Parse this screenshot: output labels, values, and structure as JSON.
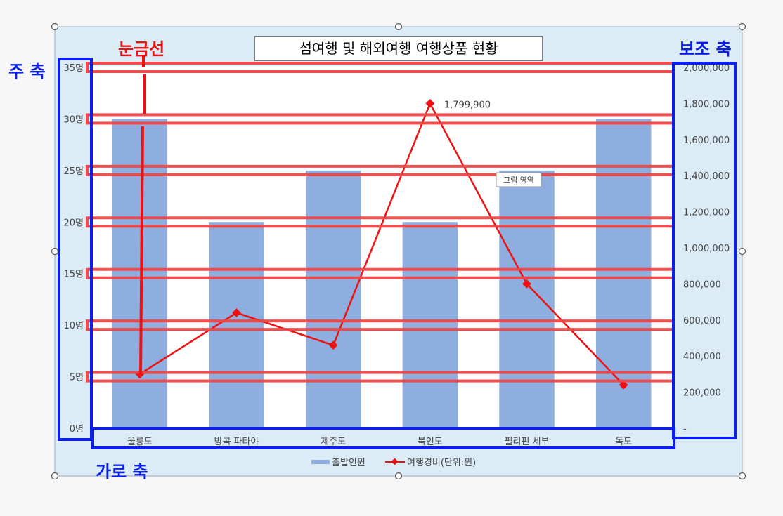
{
  "chart_data": {
    "type": "bar",
    "title": "섬여행 및 해외여행 여행상품 현황",
    "categories": [
      "울릉도",
      "방콕 파타야",
      "제주도",
      "북인도",
      "필리핀 세부",
      "독도"
    ],
    "series": [
      {
        "name": "출발인원",
        "type": "bar",
        "axis": "primary",
        "color": "#8eaedf",
        "values": [
          30,
          20,
          25,
          20,
          25,
          30
        ]
      },
      {
        "name": "여행경비(단위:원)",
        "type": "line",
        "axis": "secondary",
        "color": "#ee1111",
        "values": [
          300000,
          640000,
          460000,
          1799900,
          800000,
          240000
        ]
      }
    ],
    "primary_axis": {
      "min": 0,
      "max": 35,
      "step": 5,
      "ticks": [
        "0명",
        "5명",
        "10명",
        "15명",
        "20명",
        "25명",
        "30명",
        "35명"
      ]
    },
    "secondary_axis": {
      "min": 0,
      "max": 2000000,
      "step": 200000,
      "ticks": [
        "-",
        "200,000",
        "400,000",
        "600,000",
        "800,000",
        "1,000,000",
        "1,200,000",
        "1,400,000",
        "1,600,000",
        "1,800,000",
        "2,000,000"
      ]
    },
    "data_labels": [
      {
        "series": 1,
        "index": 3,
        "text": "1,799,900"
      }
    ],
    "legend": {
      "position": "bottom",
      "entries": [
        "출발인원",
        "여행경비(단위:원)"
      ]
    },
    "grid": false
  },
  "annotations": {
    "primary_axis": "주 축",
    "secondary_axis": "보조 축",
    "category_axis": "가로 축",
    "gridlines": "눈금선",
    "tooltip": "그림 영역"
  },
  "colors": {
    "bar": "#8eaedf",
    "line": "#ee1111",
    "highlight_red": "#f04545",
    "highlight_blue": "#0b1fe6",
    "chart_bg": "#dcecf7"
  }
}
